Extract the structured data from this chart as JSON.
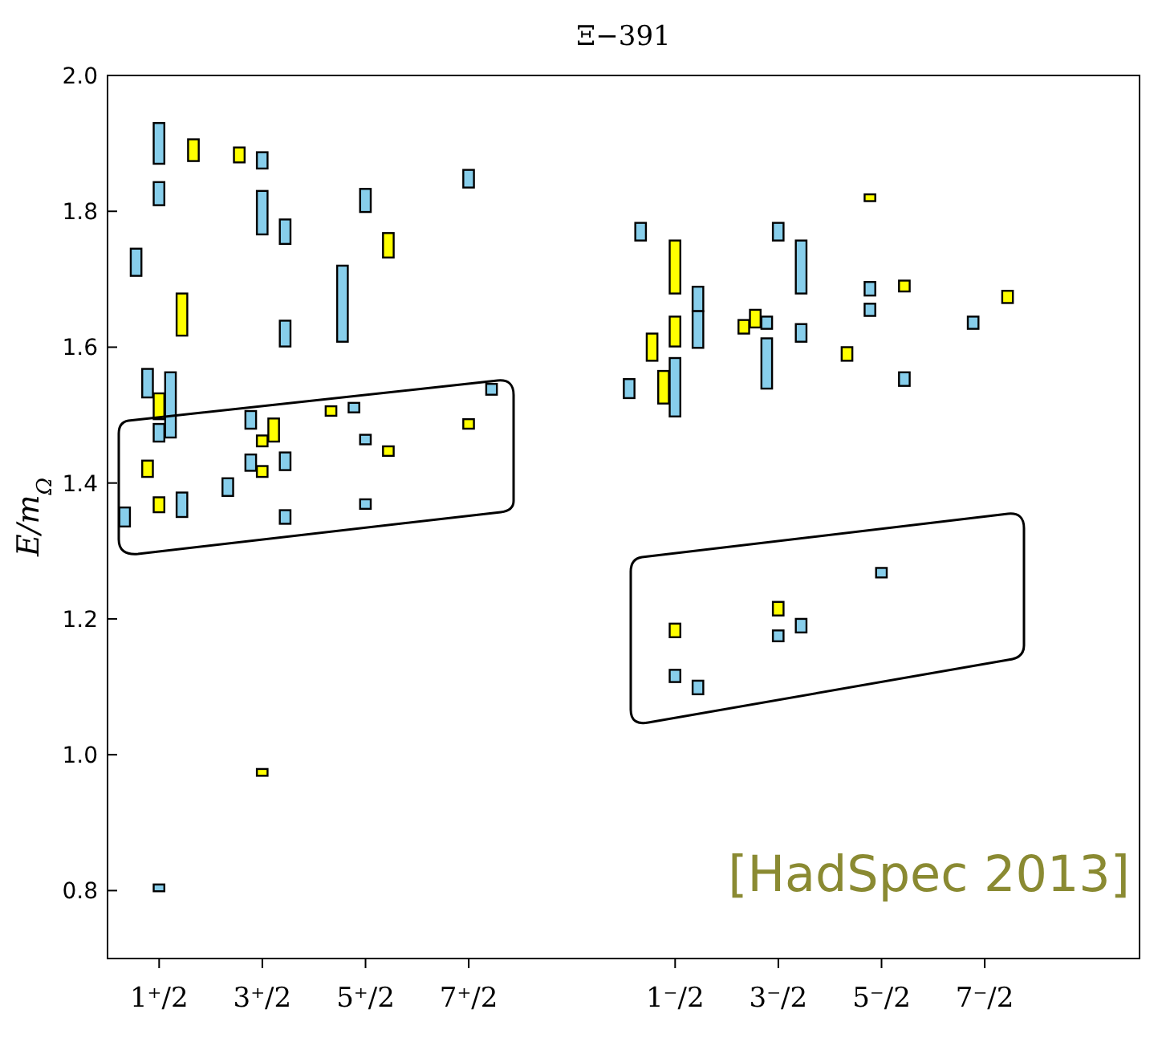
{
  "chart_data": {
    "type": "bar",
    "title": "Ξ−391",
    "ylabel": "E/m$_{Ω}$",
    "categories": [
      null,
      null,
      null,
      null,
      "1⁺/2",
      null,
      null,
      null,
      null,
      null,
      null,
      null,
      null,
      "3⁺/2",
      null,
      null,
      null,
      null,
      null,
      null,
      null,
      null,
      "5⁺/2",
      null,
      null,
      null,
      null,
      null,
      null,
      null,
      null,
      "7⁺/2",
      null,
      null,
      null,
      null,
      null,
      null,
      null,
      null,
      null,
      null,
      null,
      null,
      null,
      null,
      null,
      null,
      null,
      "1⁻/2",
      null,
      null,
      null,
      null,
      null,
      null,
      null,
      null,
      "3⁻/2",
      null,
      null,
      null,
      null,
      null,
      null,
      null,
      null,
      "5⁻/2",
      null,
      null,
      null,
      null,
      null,
      null,
      null,
      null,
      "7⁻/2",
      null,
      null,
      null,
      null,
      null,
      null,
      null,
      null,
      null,
      null,
      null,
      null,
      null
    ],
    "ylim": [
      0.7,
      2.0
    ],
    "yticks": [
      {
        "value": 0.8,
        "label": "0.8"
      },
      {
        "value": 1.0,
        "label": "1.0"
      },
      {
        "value": 1.2,
        "label": "1.2"
      },
      {
        "value": 1.4,
        "label": "1.4"
      },
      {
        "value": 1.6,
        "label": "1.6"
      },
      {
        "value": 1.8,
        "label": "1.8"
      },
      {
        "value": 2.0,
        "label": "2.0"
      }
    ],
    "annotations": [
      "[HadSpec 2013]"
    ],
    "series": [
      {
        "color": "#87ceeb",
        "values": [
          null,
          0.028,
          0.04,
          0.042,
          0.06,
          0.096,
          0.036,
          null,
          null,
          null,
          0.026,
          null,
          0.026,
          0.024,
          null,
          0.036,
          null,
          null,
          null,
          null,
          0.112,
          0.014,
          0.034,
          null,
          null,
          null,
          null,
          null,
          null,
          null,
          null,
          0.026,
          null,
          0.016,
          null,
          null,
          null,
          null,
          null,
          null,
          null,
          null,
          null,
          null,
          null,
          0.028,
          0.026,
          null,
          null,
          0.086,
          null,
          0.036,
          null,
          null,
          null,
          null,
          null,
          0.018,
          0.026,
          null,
          0.078,
          null,
          null,
          null,
          null,
          null,
          0.02,
          0.014,
          null,
          0.02,
          null,
          null,
          null,
          null,
          null,
          0.018,
          null,
          null,
          null,
          null,
          null,
          null,
          null,
          null,
          null,
          null,
          null,
          null,
          null,
          null
        ],
        "base": [
          null,
          1.336,
          1.705,
          1.526,
          1.87,
          1.467,
          1.35,
          null,
          null,
          null,
          1.381,
          null,
          1.48,
          1.863,
          null,
          1.752,
          null,
          null,
          null,
          null,
          1.608,
          1.504,
          1.799,
          null,
          null,
          null,
          null,
          null,
          null,
          null,
          null,
          1.835,
          null,
          1.53,
          null,
          null,
          null,
          null,
          null,
          null,
          null,
          null,
          null,
          null,
          null,
          1.525,
          1.757,
          null,
          null,
          1.498,
          null,
          1.653,
          null,
          null,
          null,
          null,
          null,
          1.627,
          1.757,
          null,
          1.679,
          null,
          null,
          null,
          null,
          null,
          1.676,
          1.261,
          null,
          1.543,
          null,
          null,
          null,
          null,
          null,
          1.627,
          null,
          null,
          null,
          null,
          null,
          null,
          null,
          null,
          null,
          null,
          null,
          null,
          null,
          null
        ]
      },
      {
        "color": "#87ceeb",
        "values": [
          null,
          null,
          null,
          null,
          0.034,
          null,
          null,
          null,
          null,
          null,
          null,
          null,
          0.024,
          0.064,
          null,
          0.038,
          null,
          null,
          null,
          null,
          null,
          null,
          0.014,
          null,
          null,
          null,
          null,
          null,
          null,
          null,
          null,
          null,
          null,
          null,
          null,
          null,
          null,
          null,
          null,
          null,
          null,
          null,
          null,
          null,
          null,
          null,
          null,
          null,
          null,
          0.018,
          null,
          0.054,
          null,
          null,
          null,
          null,
          null,
          0.074,
          0.016,
          null,
          0.026,
          null,
          null,
          null,
          null,
          null,
          0.018,
          null,
          null,
          null,
          null,
          null,
          null,
          null,
          null,
          null,
          null,
          null,
          null,
          null,
          null,
          null,
          null,
          null,
          null,
          null,
          null,
          null,
          null,
          null
        ],
        "base": [
          null,
          null,
          null,
          null,
          1.809,
          null,
          null,
          null,
          null,
          null,
          null,
          null,
          1.418,
          1.766,
          null,
          1.601,
          null,
          null,
          null,
          null,
          null,
          null,
          1.457,
          null,
          null,
          null,
          null,
          null,
          null,
          null,
          null,
          null,
          null,
          null,
          null,
          null,
          null,
          null,
          null,
          null,
          null,
          null,
          null,
          null,
          null,
          null,
          null,
          null,
          null,
          1.107,
          null,
          1.599,
          null,
          null,
          null,
          null,
          null,
          1.539,
          1.167,
          null,
          1.608,
          null,
          null,
          null,
          null,
          null,
          1.646,
          null,
          null,
          null,
          null,
          null,
          null,
          null,
          null,
          null,
          null,
          null,
          null,
          null,
          null,
          null,
          null,
          null,
          null,
          null,
          null,
          null,
          null,
          null
        ]
      },
      {
        "color": "#87ceeb",
        "values": [
          null,
          null,
          null,
          null,
          0.026,
          null,
          null,
          null,
          null,
          null,
          null,
          null,
          null,
          null,
          null,
          0.026,
          null,
          null,
          null,
          null,
          null,
          null,
          0.014,
          null,
          null,
          null,
          null,
          null,
          null,
          null,
          null,
          null,
          null,
          null,
          null,
          null,
          null,
          null,
          null,
          null,
          null,
          null,
          null,
          null,
          null,
          null,
          null,
          null,
          null,
          null,
          null,
          0.02,
          null,
          null,
          null,
          null,
          null,
          null,
          null,
          null,
          0.02,
          null,
          null,
          null,
          null,
          null,
          null,
          null,
          null,
          null,
          null,
          null,
          null,
          null,
          null,
          null,
          null,
          null,
          null,
          null,
          null,
          null,
          null,
          null,
          null,
          null,
          null,
          null,
          null,
          null
        ],
        "base": [
          null,
          null,
          null,
          null,
          1.461,
          null,
          null,
          null,
          null,
          null,
          null,
          null,
          null,
          null,
          null,
          1.419,
          null,
          null,
          null,
          null,
          null,
          null,
          1.362,
          null,
          null,
          null,
          null,
          null,
          null,
          null,
          null,
          null,
          null,
          null,
          null,
          null,
          null,
          null,
          null,
          null,
          null,
          null,
          null,
          null,
          null,
          null,
          null,
          null,
          null,
          null,
          null,
          1.089,
          null,
          null,
          null,
          null,
          null,
          null,
          null,
          null,
          1.18,
          null,
          null,
          null,
          null,
          null,
          null,
          null,
          null,
          null,
          null,
          null,
          null,
          null,
          null,
          null,
          null,
          null,
          null,
          null,
          null,
          null,
          null,
          null,
          null,
          null,
          null,
          null,
          null,
          null
        ]
      },
      {
        "color": "#87ceeb",
        "values": [
          null,
          null,
          null,
          null,
          0.01,
          null,
          null,
          null,
          null,
          null,
          null,
          null,
          null,
          null,
          null,
          0.02,
          null,
          null,
          null,
          null,
          null,
          null,
          null,
          null,
          null,
          null,
          null,
          null,
          null,
          null,
          null,
          null,
          null,
          null,
          null,
          null,
          null,
          null,
          null,
          null,
          null,
          null,
          null,
          null,
          null,
          null,
          null,
          null,
          null,
          null,
          null,
          null,
          null,
          null,
          null,
          null,
          null,
          null,
          null,
          null,
          null,
          null,
          null,
          null,
          null,
          null,
          null,
          null,
          null,
          null,
          null,
          null,
          null,
          null,
          null,
          null,
          null,
          null,
          null,
          null,
          null,
          null,
          null,
          null,
          null,
          null,
          null,
          null,
          null,
          null
        ],
        "base": [
          null,
          null,
          null,
          null,
          0.799,
          null,
          null,
          null,
          null,
          null,
          null,
          null,
          null,
          null,
          null,
          1.34,
          null,
          null,
          null,
          null,
          null,
          null,
          null,
          null,
          null,
          null,
          null,
          null,
          null,
          null,
          null,
          null,
          null,
          null,
          null,
          null,
          null,
          null,
          null,
          null,
          null,
          null,
          null,
          null,
          null,
          null,
          null,
          null,
          null,
          null,
          null,
          null,
          null,
          null,
          null,
          null,
          null,
          null,
          null,
          null,
          null,
          null,
          null,
          null,
          null,
          null,
          null,
          null,
          null,
          null,
          null,
          null,
          null,
          null,
          null,
          null,
          null,
          null,
          null,
          null,
          null,
          null,
          null,
          null,
          null,
          null,
          null,
          null,
          null,
          null
        ]
      },
      {
        "color": "#ffff00",
        "values": [
          null,
          null,
          null,
          0.024,
          0.038,
          null,
          0.062,
          0.032,
          null,
          null,
          null,
          0.022,
          null,
          0.016,
          0.034,
          null,
          null,
          null,
          null,
          0.014,
          null,
          null,
          null,
          null,
          0.036,
          null,
          null,
          null,
          null,
          null,
          null,
          0.014,
          null,
          null,
          null,
          null,
          null,
          null,
          null,
          null,
          null,
          null,
          null,
          null,
          null,
          null,
          null,
          0.04,
          0.048,
          0.078,
          null,
          null,
          null,
          null,
          null,
          0.02,
          0.026,
          null,
          0.02,
          null,
          null,
          null,
          null,
          null,
          0.02,
          null,
          0.01,
          null,
          null,
          0.016,
          null,
          null,
          null,
          null,
          null,
          null,
          null,
          null,
          0.018,
          null,
          null,
          null,
          null,
          null,
          null,
          null,
          null,
          null,
          null,
          null
        ],
        "base": [
          null,
          null,
          null,
          1.409,
          1.494,
          null,
          1.617,
          1.874,
          null,
          null,
          null,
          1.872,
          null,
          1.454,
          1.461,
          null,
          null,
          null,
          null,
          1.499,
          null,
          null,
          null,
          null,
          1.732,
          null,
          null,
          null,
          null,
          null,
          null,
          1.48,
          null,
          null,
          null,
          null,
          null,
          null,
          null,
          null,
          null,
          null,
          null,
          null,
          null,
          null,
          null,
          1.58,
          1.517,
          1.679,
          null,
          null,
          null,
          null,
          null,
          1.62,
          1.629,
          null,
          1.205,
          null,
          null,
          null,
          null,
          null,
          1.58,
          null,
          1.815,
          null,
          null,
          1.682,
          null,
          null,
          null,
          null,
          null,
          null,
          null,
          null,
          1.665,
          null,
          null,
          null,
          null,
          null,
          null,
          null,
          null,
          null,
          null,
          null
        ]
      },
      {
        "color": "#ffff00",
        "values": [
          null,
          null,
          null,
          null,
          0.022,
          null,
          null,
          null,
          null,
          null,
          null,
          null,
          null,
          0.016,
          null,
          null,
          null,
          null,
          null,
          null,
          null,
          null,
          null,
          null,
          0.014,
          null,
          null,
          null,
          null,
          null,
          null,
          null,
          null,
          null,
          null,
          null,
          null,
          null,
          null,
          null,
          null,
          null,
          null,
          null,
          null,
          null,
          null,
          null,
          null,
          0.044,
          null,
          null,
          null,
          null,
          null,
          null,
          null,
          null,
          null,
          null,
          null,
          null,
          null,
          null,
          null,
          null,
          null,
          null,
          null,
          null,
          null,
          null,
          null,
          null,
          null,
          null,
          null,
          null,
          null,
          null,
          null,
          null,
          null,
          null,
          null,
          null,
          null,
          null,
          null,
          null
        ],
        "base": [
          null,
          null,
          null,
          null,
          1.357,
          null,
          null,
          null,
          null,
          null,
          null,
          null,
          null,
          1.409,
          null,
          null,
          null,
          null,
          null,
          null,
          null,
          null,
          null,
          null,
          1.44,
          null,
          null,
          null,
          null,
          null,
          null,
          null,
          null,
          null,
          null,
          null,
          null,
          null,
          null,
          null,
          null,
          null,
          null,
          null,
          null,
          null,
          null,
          null,
          null,
          1.601,
          null,
          null,
          null,
          null,
          null,
          null,
          null,
          null,
          null,
          null,
          null,
          null,
          null,
          null,
          null,
          null,
          null,
          null,
          null,
          null,
          null,
          null,
          null,
          null,
          null,
          null,
          null,
          null,
          null,
          null,
          null,
          null,
          null,
          null,
          null,
          null,
          null,
          null,
          null,
          null
        ]
      },
      {
        "color": "#ffff00",
        "values": [
          null,
          null,
          null,
          null,
          null,
          null,
          null,
          null,
          null,
          null,
          null,
          null,
          null,
          0.01,
          null,
          null,
          null,
          null,
          null,
          null,
          null,
          null,
          null,
          null,
          null,
          null,
          null,
          null,
          null,
          null,
          null,
          null,
          null,
          null,
          null,
          null,
          null,
          null,
          null,
          null,
          null,
          null,
          null,
          null,
          null,
          null,
          null,
          null,
          null,
          0.02,
          null,
          null,
          null,
          null,
          null,
          null,
          null,
          null,
          null,
          null,
          null,
          null,
          null,
          null,
          null,
          null,
          null,
          null,
          null,
          null,
          null,
          null,
          null,
          null,
          null,
          null,
          null,
          null,
          null,
          null,
          null,
          null,
          null,
          null,
          null,
          null,
          null,
          null,
          null,
          null
        ],
        "base": [
          null,
          null,
          null,
          null,
          null,
          null,
          null,
          null,
          null,
          null,
          null,
          null,
          null,
          0.969,
          null,
          null,
          null,
          null,
          null,
          null,
          null,
          null,
          null,
          null,
          null,
          null,
          null,
          null,
          null,
          null,
          null,
          null,
          null,
          null,
          null,
          null,
          null,
          null,
          null,
          null,
          null,
          null,
          null,
          null,
          null,
          null,
          null,
          null,
          null,
          1.173,
          null,
          null,
          null,
          null,
          null,
          null,
          null,
          null,
          null,
          null,
          null,
          null,
          null,
          null,
          null,
          null,
          null,
          null,
          null,
          null,
          null,
          null,
          null,
          null,
          null,
          null,
          null,
          null,
          null,
          null,
          null,
          null,
          null,
          null,
          null,
          null,
          null,
          null,
          null,
          null
        ]
      }
    ]
  }
}
